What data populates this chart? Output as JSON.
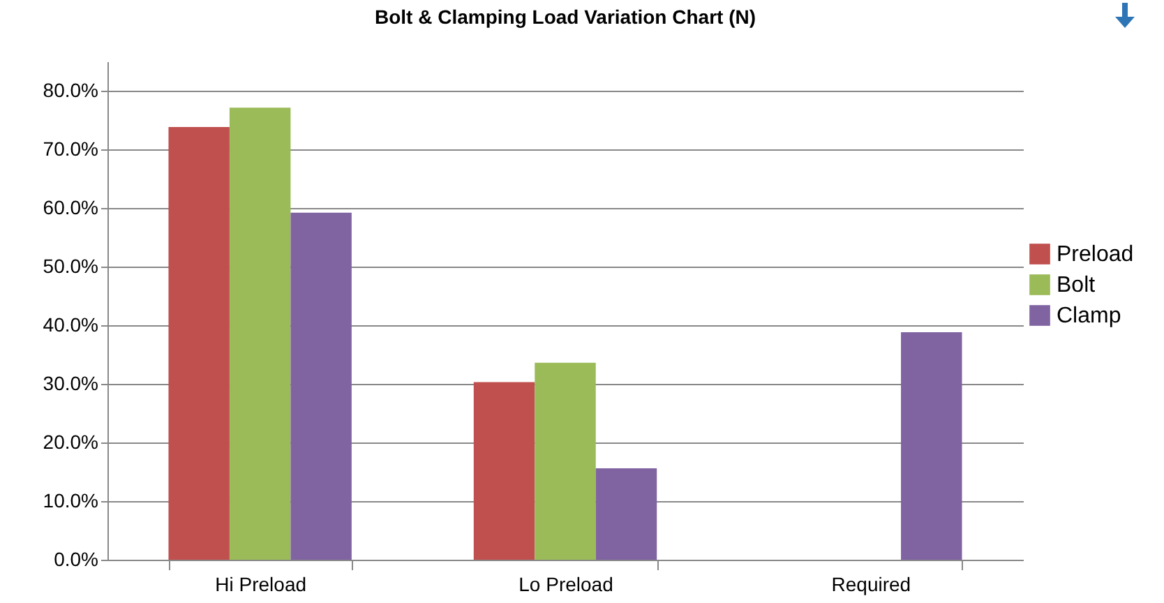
{
  "chart_data": {
    "type": "bar",
    "title": "Bolt & Clamping Load Variation Chart (N)",
    "categories": [
      "Hi Preload",
      "Lo Preload",
      "Required"
    ],
    "series": [
      {
        "name": "Preload",
        "color": "#c0504d",
        "values": [
          73.8,
          30.3,
          null
        ]
      },
      {
        "name": "Bolt",
        "color": "#9bbb59",
        "values": [
          77.1,
          33.6,
          null
        ]
      },
      {
        "name": "Clamp",
        "color": "#8064a2",
        "values": [
          59.2,
          15.6,
          38.8
        ]
      }
    ],
    "ylim": [
      0,
      85
    ],
    "yticks": [
      {
        "value": 0,
        "label": "0.0%"
      },
      {
        "value": 10,
        "label": "10.0%"
      },
      {
        "value": 20,
        "label": "20.0%"
      },
      {
        "value": 30,
        "label": "30.0%"
      },
      {
        "value": 40,
        "label": "40.0%"
      },
      {
        "value": 50,
        "label": "50.0%"
      },
      {
        "value": 60,
        "label": "60.0%"
      },
      {
        "value": 70,
        "label": "70.0%"
      },
      {
        "value": 80,
        "label": "80.0%"
      }
    ],
    "grid": "y",
    "legend": "right"
  }
}
